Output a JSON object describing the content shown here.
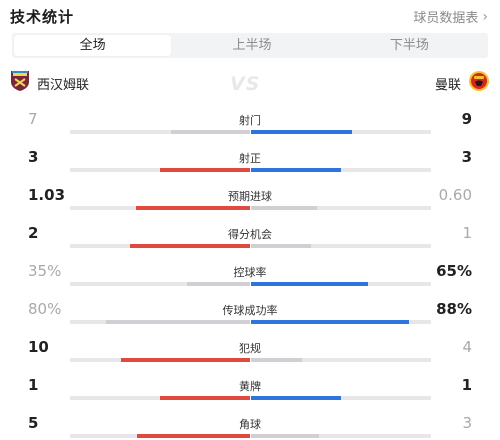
{
  "header": {
    "title": "技术统计",
    "link_label": "球员数据表",
    "link_icon": "chevron-right-icon"
  },
  "tabs": [
    {
      "label": "全场",
      "active": true
    },
    {
      "label": "上半场",
      "active": false
    },
    {
      "label": "下半场",
      "active": false
    }
  ],
  "teams": {
    "home": {
      "name": "西汉姆联",
      "icon": "west-ham-crest-icon"
    },
    "away": {
      "name": "曼联",
      "icon": "man-utd-crest-icon"
    },
    "vs_text": "VS"
  },
  "colors": {
    "home": "#e0493f",
    "away": "#2f73dc",
    "track": "#e7e7ea"
  },
  "stats": [
    {
      "label": "射门",
      "home": "7",
      "away": "9",
      "home_frac": 0.4375,
      "away_frac": 0.5625,
      "home_lead": false,
      "away_lead": true
    },
    {
      "label": "射正",
      "home": "3",
      "away": "3",
      "home_frac": 0.5,
      "away_frac": 0.5,
      "home_lead": true,
      "away_lead": true
    },
    {
      "label": "预期进球",
      "home": "1.03",
      "away": "0.60",
      "home_frac": 0.632,
      "away_frac": 0.368,
      "home_lead": true,
      "away_lead": false
    },
    {
      "label": "得分机会",
      "home": "2",
      "away": "1",
      "home_frac": 0.667,
      "away_frac": 0.333,
      "home_lead": true,
      "away_lead": false
    },
    {
      "label": "控球率",
      "home": "35%",
      "away": "65%",
      "home_frac": 0.35,
      "away_frac": 0.65,
      "home_lead": false,
      "away_lead": true
    },
    {
      "label": "传球成功率",
      "home": "80%",
      "away": "88%",
      "home_frac": 0.8,
      "away_frac": 0.88,
      "home_lead": false,
      "away_lead": true
    },
    {
      "label": "犯规",
      "home": "10",
      "away": "4",
      "home_frac": 0.714,
      "away_frac": 0.286,
      "home_lead": true,
      "away_lead": false
    },
    {
      "label": "黄牌",
      "home": "1",
      "away": "1",
      "home_frac": 0.5,
      "away_frac": 0.5,
      "home_lead": true,
      "away_lead": true
    },
    {
      "label": "角球",
      "home": "5",
      "away": "3",
      "home_frac": 0.625,
      "away_frac": 0.375,
      "home_lead": true,
      "away_lead": false
    }
  ]
}
